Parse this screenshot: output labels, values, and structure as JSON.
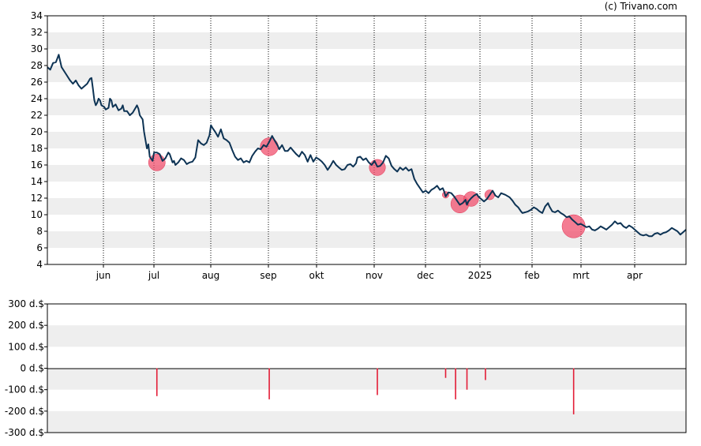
{
  "copyright": "(c) Trivano.com",
  "chart_data": [
    {
      "type": "line",
      "title": "",
      "xlabel": "",
      "ylabel": "",
      "ylim": [
        4,
        34
      ],
      "yticks": [
        "4",
        "6",
        "8",
        "10",
        "12",
        "14",
        "16",
        "18",
        "20",
        "22",
        "24",
        "26",
        "28",
        "30",
        "32",
        "34"
      ],
      "xticks": [
        "jun",
        "jul",
        "aug",
        "sep",
        "okt",
        "nov",
        "dec",
        "2025",
        "feb",
        "mrt",
        "apr"
      ],
      "grid": "alternating horizontal bands, dotted vertical month lines",
      "colors": {
        "line": "#0d3354",
        "marker": "#f0506e",
        "band": "#eeeeee"
      },
      "series": [
        {
          "values": [
            [
              0,
              27.8
            ],
            [
              2,
              27.5
            ],
            [
              4,
              28.3
            ],
            [
              6,
              28.4
            ],
            [
              8,
              29.3
            ],
            [
              10,
              27.8
            ],
            [
              13,
              27.0
            ],
            [
              16,
              26.2
            ],
            [
              18,
              25.8
            ],
            [
              20,
              26.2
            ],
            [
              22,
              25.6
            ],
            [
              24,
              25.2
            ],
            [
              26,
              25.5
            ],
            [
              28,
              25.8
            ],
            [
              30,
              26.4
            ],
            [
              31,
              26.5
            ],
            [
              32,
              25.2
            ],
            [
              33,
              23.8
            ],
            [
              34,
              23.2
            ],
            [
              35,
              23.5
            ],
            [
              36,
              24.0
            ],
            [
              37,
              23.8
            ],
            [
              38,
              23.2
            ],
            [
              40,
              23.0
            ],
            [
              41,
              22.7
            ],
            [
              43,
              22.9
            ],
            [
              44,
              24.0
            ],
            [
              45,
              23.8
            ],
            [
              46,
              23.0
            ],
            [
              48,
              23.3
            ],
            [
              50,
              22.6
            ],
            [
              52,
              22.8
            ],
            [
              53,
              23.2
            ],
            [
              54,
              22.5
            ],
            [
              56,
              22.5
            ],
            [
              58,
              22.0
            ],
            [
              60,
              22.3
            ],
            [
              62,
              22.9
            ],
            [
              63,
              23.2
            ],
            [
              64,
              22.8
            ],
            [
              65,
              22.0
            ],
            [
              67,
              21.5
            ],
            [
              68,
              20.0
            ],
            [
              69,
              19.0
            ],
            [
              70,
              18.0
            ],
            [
              71,
              18.5
            ],
            [
              72,
              17.0
            ],
            [
              74,
              16.5
            ],
            [
              75,
              17.5
            ],
            [
              77,
              17.5
            ],
            [
              79,
              17.3
            ],
            [
              81,
              16.5
            ],
            [
              83,
              16.8
            ],
            [
              85,
              17.5
            ],
            [
              86,
              17.3
            ],
            [
              88,
              16.3
            ],
            [
              89,
              16.5
            ],
            [
              90,
              16.0
            ],
            [
              92,
              16.3
            ],
            [
              94,
              16.8
            ],
            [
              96,
              16.6
            ],
            [
              98,
              16.1
            ],
            [
              100,
              16.3
            ],
            [
              102,
              16.4
            ],
            [
              104,
              16.9
            ],
            [
              106,
              19.0
            ],
            [
              108,
              18.6
            ],
            [
              110,
              18.4
            ],
            [
              112,
              18.7
            ],
            [
              114,
              19.6
            ],
            [
              115,
              20.8
            ],
            [
              116,
              20.5
            ],
            [
              118,
              20.0
            ],
            [
              120,
              19.4
            ],
            [
              122,
              20.3
            ],
            [
              124,
              19.2
            ],
            [
              126,
              19.0
            ],
            [
              128,
              18.7
            ],
            [
              130,
              17.8
            ],
            [
              132,
              17.0
            ],
            [
              134,
              16.6
            ],
            [
              136,
              16.8
            ],
            [
              138,
              16.3
            ],
            [
              140,
              16.5
            ],
            [
              142,
              16.3
            ],
            [
              144,
              17.1
            ],
            [
              146,
              17.6
            ],
            [
              148,
              18.0
            ],
            [
              150,
              17.9
            ],
            [
              152,
              18.4
            ],
            [
              154,
              18.2
            ],
            [
              156,
              18.8
            ],
            [
              158,
              19.5
            ],
            [
              160,
              18.9
            ],
            [
              162,
              18.3
            ],
            [
              163,
              17.9
            ],
            [
              165,
              18.4
            ],
            [
              167,
              17.7
            ],
            [
              169,
              17.7
            ],
            [
              171,
              18.1
            ],
            [
              173,
              17.7
            ],
            [
              175,
              17.3
            ],
            [
              177,
              17.0
            ],
            [
              179,
              17.6
            ],
            [
              181,
              17.2
            ],
            [
              183,
              16.4
            ],
            [
              185,
              17.2
            ],
            [
              187,
              16.4
            ],
            [
              189,
              16.9
            ],
            [
              191,
              16.7
            ],
            [
              193,
              16.4
            ],
            [
              195,
              16.0
            ],
            [
              197,
              15.4
            ],
            [
              199,
              15.9
            ],
            [
              201,
              16.5
            ],
            [
              203,
              16.0
            ],
            [
              205,
              15.7
            ],
            [
              207,
              15.4
            ],
            [
              209,
              15.5
            ],
            [
              211,
              16.0
            ],
            [
              213,
              16.1
            ],
            [
              215,
              15.8
            ],
            [
              217,
              16.2
            ],
            [
              218,
              16.9
            ],
            [
              220,
              17.0
            ],
            [
              222,
              16.6
            ],
            [
              224,
              16.8
            ],
            [
              226,
              16.3
            ],
            [
              228,
              16.0
            ],
            [
              230,
              16.5
            ],
            [
              232,
              15.8
            ],
            [
              234,
              15.9
            ],
            [
              236,
              16.3
            ],
            [
              238,
              17.1
            ],
            [
              240,
              16.8
            ],
            [
              242,
              15.9
            ],
            [
              244,
              15.5
            ],
            [
              246,
              15.2
            ],
            [
              248,
              15.7
            ],
            [
              250,
              15.4
            ],
            [
              252,
              15.7
            ],
            [
              254,
              15.3
            ],
            [
              256,
              15.5
            ],
            [
              258,
              14.3
            ],
            [
              260,
              13.7
            ],
            [
              262,
              13.2
            ],
            [
              264,
              12.7
            ],
            [
              266,
              12.9
            ],
            [
              268,
              12.6
            ],
            [
              270,
              13.0
            ],
            [
              272,
              13.2
            ],
            [
              274,
              13.5
            ],
            [
              276,
              13.0
            ],
            [
              278,
              13.2
            ],
            [
              279,
              12.8
            ],
            [
              280,
              12.2
            ],
            [
              282,
              12.7
            ],
            [
              284,
              12.6
            ],
            [
              286,
              12.2
            ],
            [
              288,
              11.7
            ],
            [
              290,
              11.2
            ],
            [
              292,
              11.4
            ],
            [
              294,
              11.8
            ],
            [
              295,
              11.2
            ],
            [
              296,
              11.6
            ],
            [
              298,
              12.0
            ],
            [
              300,
              12.3
            ],
            [
              302,
              12.5
            ],
            [
              303,
              12.2
            ],
            [
              305,
              11.9
            ],
            [
              307,
              11.6
            ],
            [
              309,
              11.9
            ],
            [
              311,
              12.4
            ],
            [
              313,
              12.9
            ],
            [
              315,
              12.3
            ],
            [
              317,
              12.1
            ],
            [
              319,
              12.6
            ],
            [
              322,
              12.4
            ],
            [
              325,
              12.1
            ],
            [
              327,
              11.7
            ],
            [
              329,
              11.2
            ],
            [
              331,
              10.9
            ],
            [
              333,
              10.4
            ],
            [
              334,
              10.2
            ],
            [
              336,
              10.3
            ],
            [
              338,
              10.4
            ],
            [
              340,
              10.6
            ],
            [
              342,
              10.9
            ],
            [
              344,
              10.7
            ],
            [
              346,
              10.4
            ],
            [
              348,
              10.2
            ],
            [
              350,
              11.0
            ],
            [
              352,
              11.4
            ],
            [
              353,
              11.0
            ],
            [
              355,
              10.4
            ],
            [
              357,
              10.3
            ],
            [
              359,
              10.5
            ],
            [
              361,
              10.2
            ],
            [
              363,
              10.0
            ],
            [
              365,
              9.7
            ],
            [
              367,
              9.8
            ],
            [
              369,
              9.4
            ],
            [
              371,
              9.1
            ],
            [
              373,
              8.8
            ],
            [
              375,
              8.9
            ],
            [
              377,
              8.7
            ],
            [
              379,
              8.5
            ],
            [
              381,
              8.6
            ],
            [
              383,
              8.2
            ],
            [
              385,
              8.1
            ],
            [
              387,
              8.3
            ],
            [
              389,
              8.6
            ],
            [
              391,
              8.4
            ],
            [
              393,
              8.2
            ],
            [
              395,
              8.5
            ],
            [
              397,
              8.8
            ],
            [
              399,
              9.2
            ],
            [
              401,
              8.9
            ],
            [
              403,
              9.0
            ],
            [
              405,
              8.6
            ],
            [
              407,
              8.4
            ],
            [
              409,
              8.7
            ],
            [
              411,
              8.5
            ],
            [
              413,
              8.2
            ],
            [
              415,
              7.9
            ],
            [
              417,
              7.6
            ],
            [
              419,
              7.5
            ],
            [
              421,
              7.6
            ],
            [
              423,
              7.4
            ],
            [
              425,
              7.4
            ],
            [
              427,
              7.7
            ],
            [
              429,
              7.8
            ],
            [
              431,
              7.6
            ],
            [
              433,
              7.8
            ],
            [
              435,
              7.9
            ],
            [
              437,
              8.1
            ],
            [
              439,
              8.4
            ],
            [
              441,
              8.2
            ],
            [
              443,
              8.0
            ],
            [
              445,
              7.6
            ],
            [
              447,
              7.9
            ],
            [
              449,
              8.2
            ]
          ],
          "markers": [
            {
              "t": 77,
              "y": 16.3,
              "size": 112
            },
            {
              "t": 156,
              "y": 18.2,
              "size": 130
            },
            {
              "t": 232,
              "y": 15.7,
              "size": 105
            },
            {
              "t": 280,
              "y": 12.4,
              "size": 18
            },
            {
              "t": 290,
              "y": 11.3,
              "size": 130
            },
            {
              "t": 298,
              "y": 11.9,
              "size": 88
            },
            {
              "t": 311,
              "y": 12.4,
              "size": 40
            },
            {
              "t": 370,
              "y": 8.6,
              "size": 215
            }
          ]
        }
      ]
    },
    {
      "type": "bar",
      "title": "",
      "xlabel": "",
      "ylabel": "",
      "ylim": [
        -300,
        300
      ],
      "yticks": [
        "300 d.$",
        "200 d.$",
        "100 d.$",
        "0 d.$",
        "-100 d.$",
        "-200 d.$",
        "-300 d.$"
      ],
      "colors": {
        "bar": "#e31c36",
        "band": "#eeeeee"
      },
      "series": [
        {
          "values": [
            {
              "t": 77,
              "v": -130
            },
            {
              "t": 156,
              "v": -145
            },
            {
              "t": 232,
              "v": -125
            },
            {
              "t": 280,
              "v": -45
            },
            {
              "t": 287,
              "v": -145
            },
            {
              "t": 295,
              "v": -100
            },
            {
              "t": 308,
              "v": -55
            },
            {
              "t": 370,
              "v": -215
            }
          ]
        }
      ]
    }
  ]
}
